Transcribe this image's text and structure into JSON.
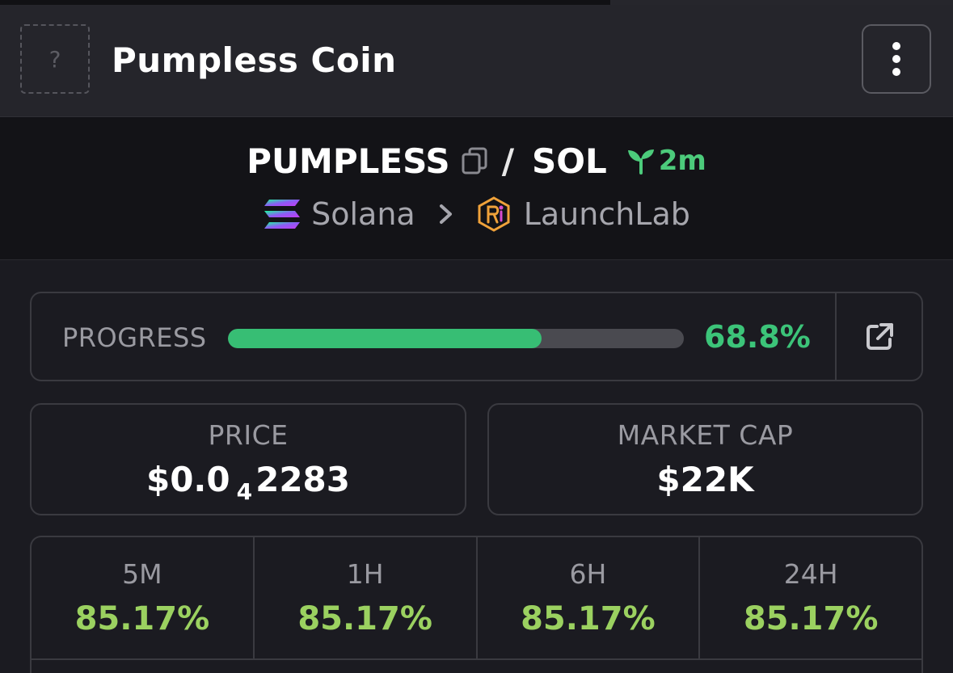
{
  "header": {
    "logo_placeholder": "?",
    "coin_name": "Pumpless Coin",
    "menu_icon": "more-vertical-icon"
  },
  "pair": {
    "base": "PUMPLESS",
    "separator": "/",
    "quote": "SOL",
    "age": "2m",
    "copy_icon": "copy-icon",
    "age_icon": "sprout-icon"
  },
  "chain": {
    "network": "Solana",
    "dex": "LaunchLab",
    "network_icon": "solana-icon",
    "dex_icon": "launchlab-icon"
  },
  "progress": {
    "label": "PROGRESS",
    "value": "68.8%",
    "fraction": 0.688,
    "external_icon": "external-link-icon"
  },
  "price": {
    "label": "PRICE",
    "prefix": "$0.0",
    "zeros": "4",
    "digits": "2283"
  },
  "market_cap": {
    "label": "MARKET CAP",
    "value": "$22K"
  },
  "changes": [
    {
      "label": "5M",
      "value": "85.17%"
    },
    {
      "label": "1H",
      "value": "85.17%"
    },
    {
      "label": "6H",
      "value": "85.17%"
    },
    {
      "label": "24H",
      "value": "85.17%"
    }
  ],
  "colors": {
    "accent_green": "#3cc479",
    "change_green": "#9bd160",
    "background": "#1b1b21"
  }
}
